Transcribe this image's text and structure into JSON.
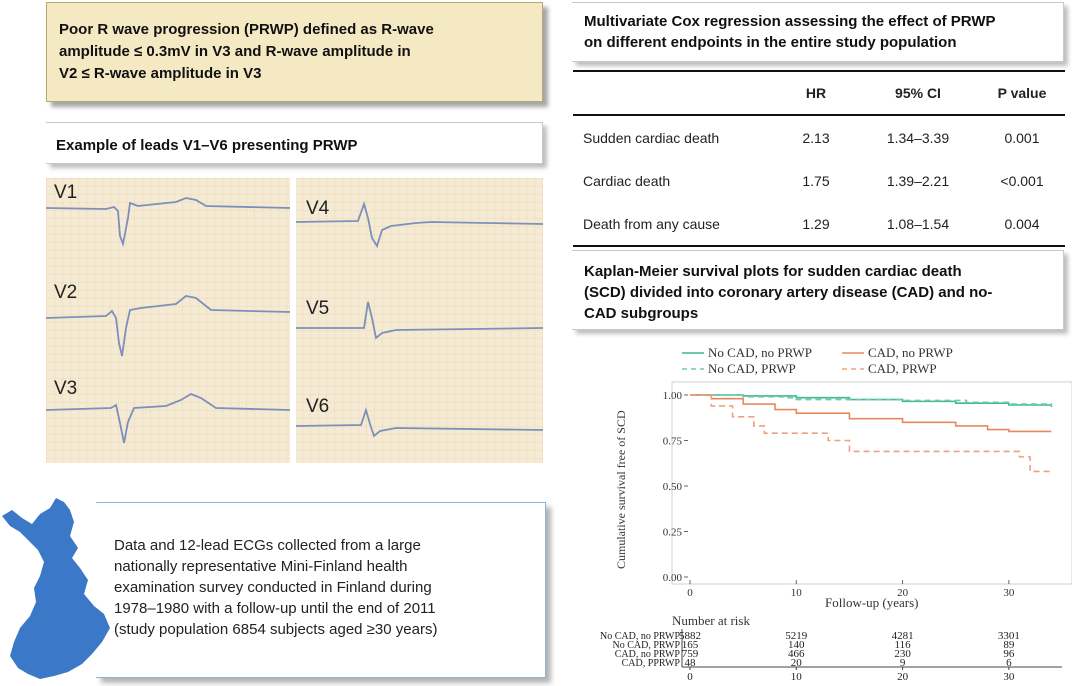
{
  "definition": {
    "line1": "Poor R wave progression (PRWP) defined as R-wave",
    "line2": "amplitude ≤ 0.3mV in V3 and R-wave amplitude in",
    "line3": "V2 ≤ R-wave amplitude in V3"
  },
  "ecg": {
    "title": "Example of leads V1–V6 presenting PRWP",
    "leads": [
      "V1",
      "V2",
      "V3",
      "V4",
      "V5",
      "V6"
    ]
  },
  "study": {
    "lines": [
      "Data and 12-lead ECGs collected from a large",
      "nationally representative Mini-Finland health",
      "examination survey conducted in Finland during",
      "1978–1980 with a follow-up until the end of 2011",
      "(study population 6854 subjects aged ≥30 years)"
    ]
  },
  "cox": {
    "title_line1": "Multivariate Cox regression assessing the effect of PRWP",
    "title_line2": "on different endpoints in the entire study population",
    "headers": [
      "",
      "HR",
      "95% CI",
      "P value"
    ],
    "rows": [
      {
        "endpoint": "Sudden cardiac death",
        "hr": "2.13",
        "ci": "1.34–3.39",
        "p": "0.001"
      },
      {
        "endpoint": "Cardiac death",
        "hr": "1.75",
        "ci": "1.39–2.21",
        "p": "<0.001"
      },
      {
        "endpoint": "Death from any cause",
        "hr": "1.29",
        "ci": "1.08–1.54",
        "p": "0.004"
      }
    ]
  },
  "km": {
    "title_line1": "Kaplan-Meier survival plots for sudden cardiac death",
    "title_line2": "(SCD) divided into coronary artery disease (CAD) and no-",
    "title_line3": "CAD subgroups",
    "number_at_risk_label": "Number at risk"
  },
  "chart_data": {
    "type": "line",
    "title": "Kaplan-Meier survival plots for sudden cardiac death (SCD)",
    "xlabel": "Follow-up (years)",
    "ylabel": "Cumulative survival free of SCD",
    "xlim": [
      0,
      35
    ],
    "ylim": [
      0,
      1
    ],
    "x_ticks": [
      0,
      10,
      20,
      30
    ],
    "y_ticks": [
      "0.00",
      "0.25",
      "0.50",
      "0.75",
      "1.00"
    ],
    "series": [
      {
        "name": "No CAD, no PRWP",
        "color": "#3fb98c",
        "dash": false,
        "points": [
          [
            0,
            1.0
          ],
          [
            5,
            0.995
          ],
          [
            10,
            0.985
          ],
          [
            15,
            0.975
          ],
          [
            20,
            0.965
          ],
          [
            25,
            0.955
          ],
          [
            30,
            0.945
          ],
          [
            34,
            0.935
          ]
        ]
      },
      {
        "name": "No CAD, PRWP",
        "color": "#6ccca6",
        "dash": true,
        "points": [
          [
            0,
            1.0
          ],
          [
            5,
            0.99
          ],
          [
            9,
            0.985
          ],
          [
            10,
            0.975
          ],
          [
            20,
            0.97
          ],
          [
            26,
            0.96
          ],
          [
            30,
            0.95
          ],
          [
            34,
            0.94
          ]
        ]
      },
      {
        "name": "CAD, no PRWP",
        "color": "#e8875f",
        "dash": false,
        "points": [
          [
            0,
            1.0
          ],
          [
            2,
            0.98
          ],
          [
            5,
            0.95
          ],
          [
            8,
            0.92
          ],
          [
            10,
            0.9
          ],
          [
            15,
            0.87
          ],
          [
            20,
            0.85
          ],
          [
            25,
            0.83
          ],
          [
            28,
            0.81
          ],
          [
            30,
            0.8
          ],
          [
            34,
            0.8
          ]
        ]
      },
      {
        "name": "CAD, PRWP",
        "color": "#eea080",
        "dash": true,
        "points": [
          [
            0,
            1.0
          ],
          [
            2,
            0.94
          ],
          [
            4,
            0.88
          ],
          [
            6,
            0.83
          ],
          [
            7,
            0.79
          ],
          [
            10,
            0.79
          ],
          [
            13,
            0.75
          ],
          [
            15,
            0.69
          ],
          [
            22,
            0.69
          ],
          [
            31,
            0.66
          ],
          [
            32,
            0.58
          ],
          [
            34,
            0.58
          ]
        ]
      }
    ],
    "risk_table": {
      "rows": [
        {
          "label": "No CAD, no PRWP",
          "values": [
            "5882",
            "5219",
            "4281",
            "3301"
          ]
        },
        {
          "label": "No CAD, PRWP",
          "values": [
            "165",
            "140",
            "116",
            "89"
          ]
        },
        {
          "label": "CAD, no PRWP",
          "values": [
            "759",
            "466",
            "230",
            "96"
          ]
        },
        {
          "label": "CAD, PPRWP",
          "values": [
            "48",
            "20",
            "9",
            "6"
          ]
        }
      ],
      "ticks": [
        "0",
        "10",
        "20",
        "30"
      ]
    }
  }
}
